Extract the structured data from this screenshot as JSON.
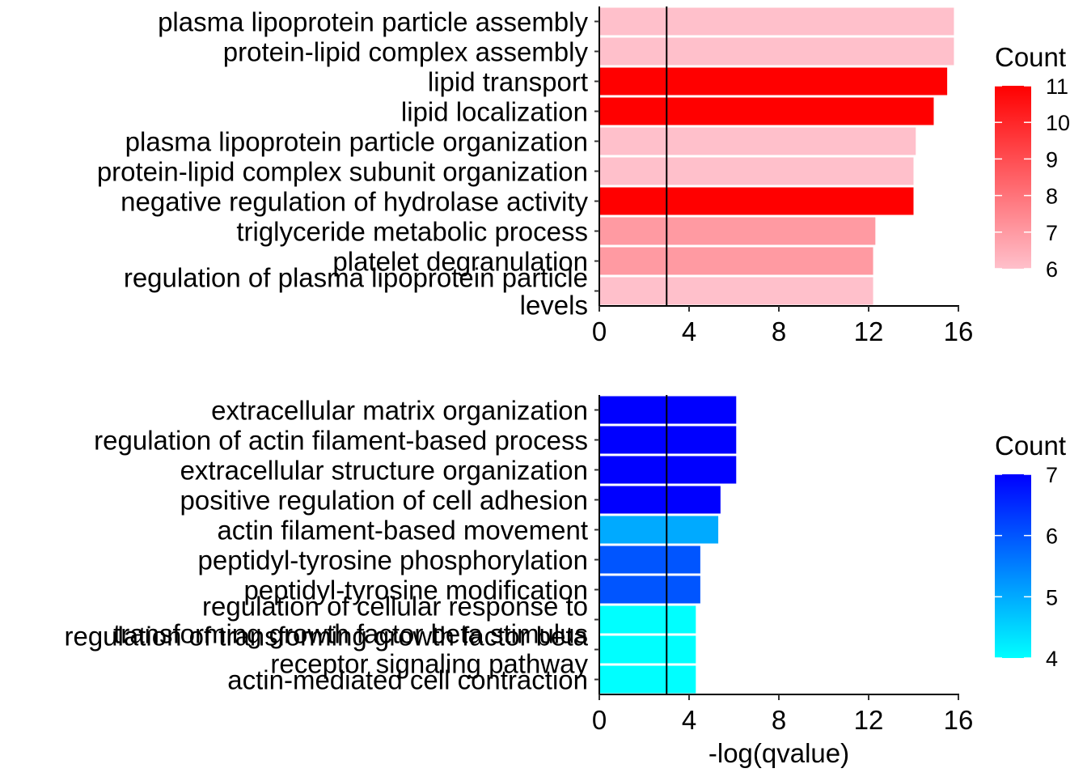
{
  "chart_data": [
    {
      "type": "bar",
      "orientation": "horizontal",
      "categories": [
        "plasma lipoprotein particle assembly",
        "protein-lipid complex assembly",
        "lipid transport",
        "lipid localization",
        "plasma lipoprotein particle organization",
        "protein-lipid complex subunit organization",
        "negative regulation of hydrolase activity",
        "triglyceride metabolic process",
        "platelet degranulation",
        "regulation of plasma lipoprotein particle levels"
      ],
      "values": [
        15.8,
        15.8,
        15.5,
        14.9,
        14.1,
        14.0,
        14.0,
        12.3,
        12.2,
        12.2
      ],
      "counts": [
        6,
        6,
        11,
        11,
        6,
        6,
        11,
        7,
        7,
        6
      ],
      "xlim": [
        0,
        16
      ],
      "xticks": [
        "0",
        "4",
        "8",
        "12",
        "16"
      ],
      "reference_line": 3,
      "legend": {
        "title": "Count",
        "ticks": [
          "6",
          "7",
          "8",
          "9",
          "10",
          "11"
        ],
        "low_color": "#FFC0CB",
        "high_color": "#FF0000",
        "range": [
          6,
          11
        ],
        "position": "right"
      },
      "xlabel": "",
      "ylabel": "",
      "grid": false
    },
    {
      "type": "bar",
      "orientation": "horizontal",
      "categories": [
        "extracellular matrix organization",
        "regulation of actin filament-based process",
        "extracellular structure organization",
        "positive regulation of cell adhesion",
        "actin filament-based movement",
        "peptidyl-tyrosine phosphorylation",
        "peptidyl-tyrosine modification",
        "regulation of cellular response to transforming growth factor beta stimulus",
        "regulation of transforming growth factor beta receptor signaling pathway",
        "actin-mediated cell contraction"
      ],
      "values": [
        6.1,
        6.1,
        6.1,
        5.4,
        5.3,
        4.5,
        4.5,
        4.3,
        4.3,
        4.3
      ],
      "counts": [
        7,
        7,
        7,
        7,
        5,
        6,
        6,
        4,
        4,
        4
      ],
      "xlim": [
        0,
        16
      ],
      "xticks": [
        "0",
        "4",
        "8",
        "12",
        "16"
      ],
      "reference_line": 3,
      "legend": {
        "title": "Count",
        "ticks": [
          "4",
          "5",
          "6",
          "7"
        ],
        "low_color": "#00FFFF",
        "high_color": "#0000FF",
        "range": [
          4,
          7
        ],
        "position": "right"
      },
      "xlabel": "-log(qvalue)",
      "ylabel": "",
      "grid": false
    }
  ]
}
